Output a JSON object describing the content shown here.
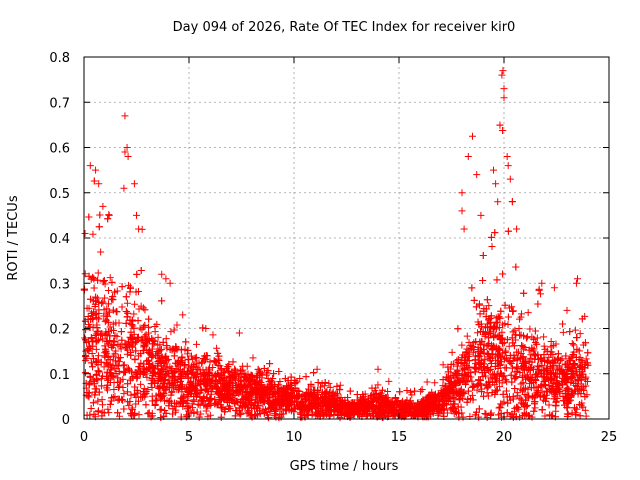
{
  "chart_data": {
    "type": "scatter",
    "title": "Day 094 of 2026, Rate Of TEC Index for receiver kir0",
    "xlabel": "GPS time / hours",
    "ylabel": "ROTI / TECUs",
    "xlim": [
      0,
      25
    ],
    "ylim": [
      0,
      0.8
    ],
    "xticks": [
      0,
      5,
      10,
      15,
      20,
      25
    ],
    "yticks": [
      0,
      0.1,
      0.2,
      0.3,
      0.4,
      0.5,
      0.6,
      0.7,
      0.8
    ],
    "grid": true,
    "marker": "+",
    "color": "#ff0000",
    "series": [
      {
        "name": "ROTI",
        "profile": [
          {
            "x": 0.0,
            "median": 0.16,
            "spread": 0.14,
            "max": 0.41
          },
          {
            "x": 0.5,
            "median": 0.17,
            "spread": 0.14,
            "max": 0.56
          },
          {
            "x": 1.0,
            "median": 0.15,
            "spread": 0.13,
            "max": 0.52
          },
          {
            "x": 1.5,
            "median": 0.14,
            "spread": 0.12,
            "max": 0.45
          },
          {
            "x": 2.0,
            "median": 0.14,
            "spread": 0.13,
            "max": 0.67
          },
          {
            "x": 2.5,
            "median": 0.13,
            "spread": 0.12,
            "max": 0.52
          },
          {
            "x": 3.0,
            "median": 0.11,
            "spread": 0.1,
            "max": 0.4
          },
          {
            "x": 3.5,
            "median": 0.1,
            "spread": 0.08,
            "max": 0.3
          },
          {
            "x": 4.0,
            "median": 0.09,
            "spread": 0.07,
            "max": 0.32
          },
          {
            "x": 4.5,
            "median": 0.09,
            "spread": 0.07,
            "max": 0.22
          },
          {
            "x": 5.0,
            "median": 0.08,
            "spread": 0.06,
            "max": 0.23
          },
          {
            "x": 6.0,
            "median": 0.07,
            "spread": 0.05,
            "max": 0.2
          },
          {
            "x": 7.0,
            "median": 0.07,
            "spread": 0.05,
            "max": 0.19
          },
          {
            "x": 8.0,
            "median": 0.06,
            "spread": 0.04,
            "max": 0.14
          },
          {
            "x": 9.0,
            "median": 0.05,
            "spread": 0.035,
            "max": 0.12
          },
          {
            "x": 10.0,
            "median": 0.045,
            "spread": 0.03,
            "max": 0.1
          },
          {
            "x": 11.0,
            "median": 0.04,
            "spread": 0.03,
            "max": 0.12
          },
          {
            "x": 12.0,
            "median": 0.03,
            "spread": 0.02,
            "max": 0.08
          },
          {
            "x": 13.0,
            "median": 0.02,
            "spread": 0.015,
            "max": 0.06
          },
          {
            "x": 14.0,
            "median": 0.03,
            "spread": 0.03,
            "max": 0.11
          },
          {
            "x": 15.0,
            "median": 0.02,
            "spread": 0.015,
            "max": 0.06
          },
          {
            "x": 16.0,
            "median": 0.02,
            "spread": 0.015,
            "max": 0.07
          },
          {
            "x": 17.0,
            "median": 0.04,
            "spread": 0.03,
            "max": 0.12
          },
          {
            "x": 17.8,
            "median": 0.07,
            "spread": 0.05,
            "max": 0.2
          },
          {
            "x": 18.5,
            "median": 0.12,
            "spread": 0.1,
            "max": 0.62
          },
          {
            "x": 19.0,
            "median": 0.13,
            "spread": 0.1,
            "max": 0.45
          },
          {
            "x": 19.5,
            "median": 0.13,
            "spread": 0.11,
            "max": 0.55
          },
          {
            "x": 20.0,
            "median": 0.13,
            "spread": 0.11,
            "max": 0.77
          },
          {
            "x": 20.5,
            "median": 0.12,
            "spread": 0.1,
            "max": 0.42
          },
          {
            "x": 21.0,
            "median": 0.1,
            "spread": 0.08,
            "max": 0.3
          },
          {
            "x": 21.5,
            "median": 0.09,
            "spread": 0.07,
            "max": 0.29
          },
          {
            "x": 22.0,
            "median": 0.09,
            "spread": 0.07,
            "max": 0.29
          },
          {
            "x": 22.5,
            "median": 0.08,
            "spread": 0.06,
            "max": 0.25
          },
          {
            "x": 23.0,
            "median": 0.08,
            "spread": 0.06,
            "max": 0.24
          },
          {
            "x": 23.5,
            "median": 0.09,
            "spread": 0.07,
            "max": 0.31
          },
          {
            "x": 24.0,
            "median": 0.08,
            "spread": 0.06,
            "max": 0.22
          }
        ],
        "points": [
          [
            0.05,
            0.41
          ],
          [
            0.3,
            0.56
          ],
          [
            0.55,
            0.55
          ],
          [
            0.7,
            0.52
          ],
          [
            0.9,
            0.47
          ],
          [
            1.2,
            0.45
          ],
          [
            1.95,
            0.67
          ],
          [
            1.95,
            0.59
          ],
          [
            2.05,
            0.6
          ],
          [
            2.1,
            0.58
          ],
          [
            1.9,
            0.51
          ],
          [
            2.4,
            0.52
          ],
          [
            2.5,
            0.45
          ],
          [
            2.6,
            0.42
          ],
          [
            3.7,
            0.32
          ],
          [
            3.9,
            0.31
          ],
          [
            4.1,
            0.3
          ],
          [
            4.7,
            0.23
          ],
          [
            5.8,
            0.2
          ],
          [
            7.4,
            0.19
          ],
          [
            11.1,
            0.11
          ],
          [
            14.0,
            0.11
          ],
          [
            16.7,
            0.08
          ],
          [
            17.1,
            0.12
          ],
          [
            18.0,
            0.5
          ],
          [
            18.0,
            0.46
          ],
          [
            18.1,
            0.42
          ],
          [
            18.3,
            0.58
          ],
          [
            18.5,
            0.625
          ],
          [
            18.7,
            0.54
          ],
          [
            18.9,
            0.45
          ],
          [
            19.5,
            0.55
          ],
          [
            19.6,
            0.52
          ],
          [
            19.7,
            0.48
          ],
          [
            19.9,
            0.76
          ],
          [
            19.95,
            0.77
          ],
          [
            20.0,
            0.73
          ],
          [
            20.0,
            0.71
          ],
          [
            20.15,
            0.58
          ],
          [
            20.2,
            0.56
          ],
          [
            20.3,
            0.53
          ],
          [
            20.4,
            0.48
          ],
          [
            20.6,
            0.42
          ],
          [
            21.8,
            0.3
          ],
          [
            22.4,
            0.29
          ],
          [
            23.0,
            0.24
          ],
          [
            23.45,
            0.3
          ],
          [
            23.5,
            0.31
          ]
        ]
      }
    ]
  }
}
